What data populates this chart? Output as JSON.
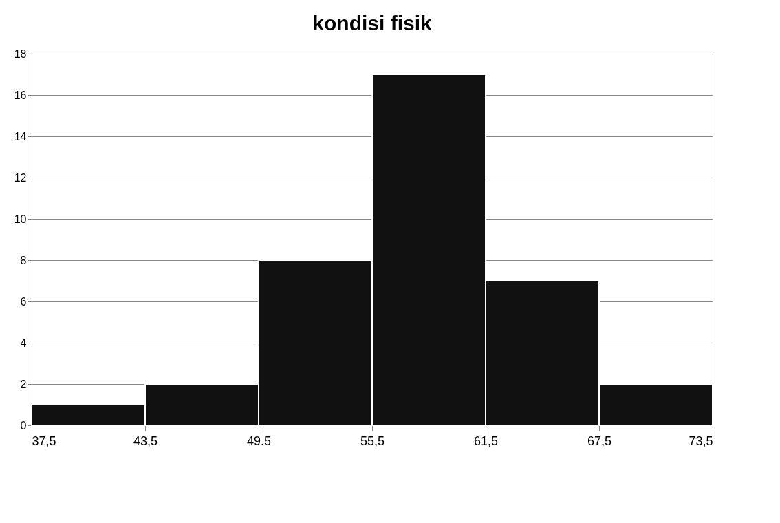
{
  "chart_data": {
    "type": "histogram",
    "title": "kondisi fisik",
    "bins": [
      37.5,
      43.5,
      49.5,
      55.5,
      61.5,
      67.5,
      73.5
    ],
    "values": [
      1,
      2,
      8,
      17,
      7,
      2
    ],
    "color": "#111111",
    "xlim": [
      37.5,
      73.5
    ],
    "xticks": [
      {
        "value": 37.5,
        "label": "37,5"
      },
      {
        "value": 43.5,
        "label": "43,5"
      },
      {
        "value": 49.5,
        "label": "49.5"
      },
      {
        "value": 55.5,
        "label": "55,5"
      },
      {
        "value": 61.5,
        "label": "61,5"
      },
      {
        "value": 67.5,
        "label": "67,5"
      },
      {
        "value": 73.5,
        "label": "73,5"
      }
    ],
    "ylim": [
      0,
      18
    ],
    "yticks": [
      0,
      2,
      4,
      6,
      8,
      10,
      12,
      14,
      16,
      18
    ],
    "grid": "y"
  }
}
